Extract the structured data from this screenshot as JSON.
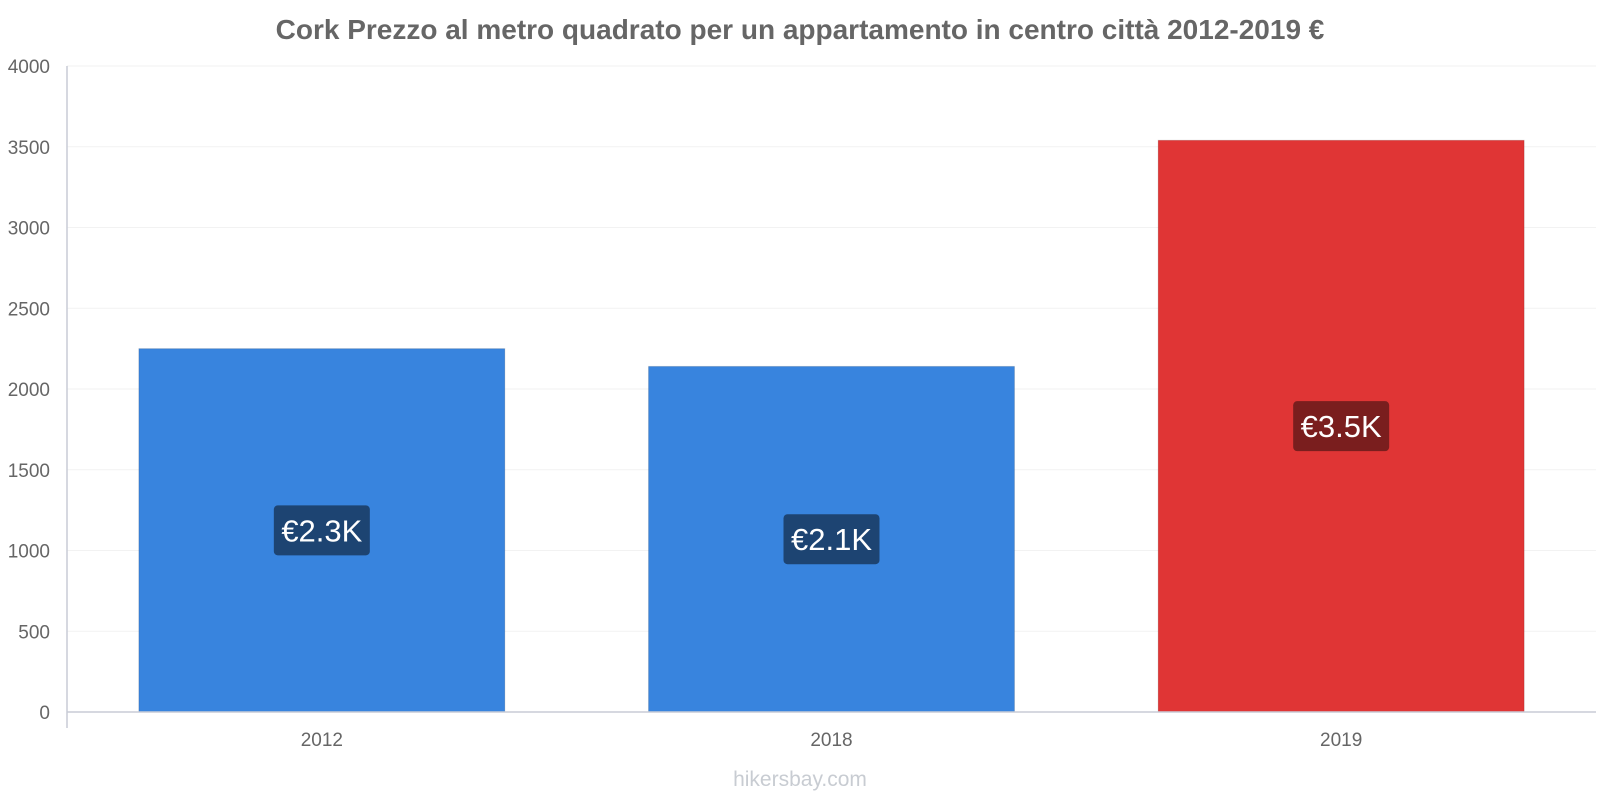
{
  "chart_data": {
    "type": "bar",
    "title": "Cork Prezzo al metro quadrato per un appartamento in centro città 2012-2019 €",
    "categories": [
      "2012",
      "2018",
      "2019"
    ],
    "values": [
      2250,
      2140,
      3540
    ],
    "data_labels": [
      "€2.3K",
      "€2.1K",
      "€3.5K"
    ],
    "bar_colors": [
      "#3884de",
      "#3884de",
      "#e03535"
    ],
    "label_box_colors": [
      "#1d4472",
      "#1d4472",
      "#7a1e1e"
    ],
    "ylim": [
      0,
      4000
    ],
    "yticks": [
      0,
      500,
      1000,
      1500,
      2000,
      2500,
      3000,
      3500,
      4000
    ],
    "grid": true,
    "legend": "none"
  },
  "watermark": "hikersbay.com"
}
